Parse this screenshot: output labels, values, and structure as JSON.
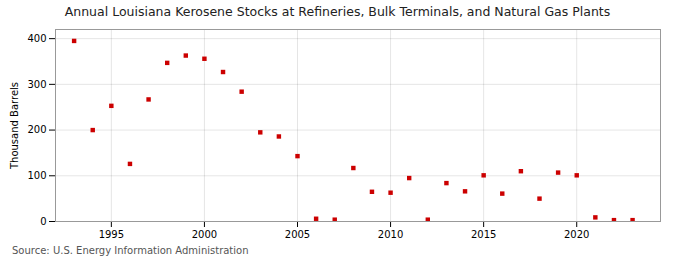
{
  "chart_data": {
    "type": "scatter",
    "title": "Annual Louisiana Kerosene Stocks at Refineries, Bulk Terminals, and Natural Gas Plants",
    "ylabel": "Thousand Barrels",
    "source": "Source: U.S. Energy Information Administration",
    "x": [
      1993,
      1994,
      1995,
      1996,
      1997,
      1998,
      1999,
      2000,
      2001,
      2002,
      2003,
      2004,
      2005,
      2006,
      2007,
      2008,
      2009,
      2010,
      2011,
      2012,
      2013,
      2014,
      2015,
      2016,
      2017,
      2018,
      2019,
      2020,
      2021,
      2022,
      2023
    ],
    "values": [
      395,
      200,
      253,
      126,
      267,
      347,
      363,
      356,
      327,
      284,
      195,
      186,
      143,
      6,
      4,
      117,
      65,
      63,
      95,
      4,
      84,
      66,
      101,
      61,
      110,
      50,
      107,
      101,
      9,
      3,
      3
    ],
    "color": "#cc0000",
    "marker": "square",
    "xlim": [
      1992.0,
      2024.5
    ],
    "ylim": [
      0,
      420
    ],
    "xticks": [
      1995,
      2000,
      2005,
      2010,
      2015,
      2020
    ],
    "yticks": [
      0,
      100,
      200,
      300,
      400
    ],
    "grid": true
  }
}
